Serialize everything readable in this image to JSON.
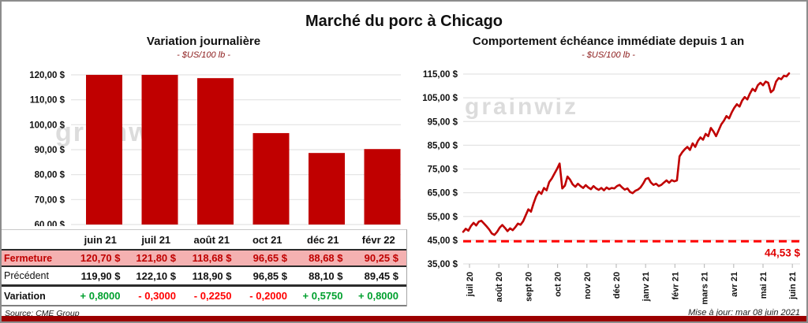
{
  "page": {
    "title": "Marché du porc à Chicago",
    "source": "Source: CME Group",
    "updated": "Mise à jour: mar 08 juin 2021",
    "watermark": "grainwiz"
  },
  "colors": {
    "bar": "#c00000",
    "line": "#c00000",
    "reference_dash": "#ff0000",
    "reference_label": "#e00000",
    "close_row_bg": "#f4b1b1",
    "close_row_text": "#c00000",
    "positive": "#00a02e",
    "negative": "#ff0000",
    "gridline": "#e3e3e3",
    "axis_text": "#111111",
    "watermark": "#dcdcdc",
    "footer_strip": "#9c0000"
  },
  "table": {
    "col_headers": [
      "juin 21",
      "juil 21",
      "août 21",
      "oct 21",
      "déc 21",
      "févr 22"
    ],
    "rows": [
      {
        "label": "Fermeture",
        "style": "close",
        "values": [
          "120,70 $",
          "121,80 $",
          "118,68 $",
          "96,65 $",
          "88,68 $",
          "90,25 $"
        ]
      },
      {
        "label": "Précédent",
        "style": "prev",
        "values": [
          "119,90 $",
          "122,10 $",
          "118,90 $",
          "96,85 $",
          "88,10 $",
          "89,45 $"
        ]
      },
      {
        "label": "Variation",
        "style": "var",
        "values": [
          "+ 0,8000",
          "- 0,3000",
          "- 0,2250",
          "- 0,2000",
          "+ 0,5750",
          "+ 0,8000"
        ]
      }
    ]
  },
  "chart_data": [
    {
      "type": "bar",
      "title": "Variation  journalière",
      "subtitle": "- $US/100 lb -",
      "categories": [
        "juin 21",
        "juil 21",
        "août 21",
        "oct 21",
        "déc 21",
        "févr 22"
      ],
      "values": [
        120.7,
        121.8,
        118.68,
        96.65,
        88.68,
        90.25
      ],
      "ylim": [
        60,
        120
      ],
      "ytick_labels": [
        "120,00 $",
        "110,00 $",
        "100,00 $",
        "90,00 $",
        "80,00 $",
        "70,00 $",
        "60,00 $"
      ],
      "ytick_values": [
        120,
        110,
        100,
        90,
        80,
        70,
        60
      ],
      "grid": true,
      "note": "bars exceeding 120 are clipped at axis max"
    },
    {
      "type": "line",
      "title": "Comportement  échéance immédiate depuis 1 an",
      "subtitle": "- $US/100 lb -",
      "x_tick_labels": [
        "juil 20",
        "août 20",
        "sept 20",
        "oct 20",
        "nov 20",
        "déc 20",
        "janv 21",
        "févr 21",
        "mars 21",
        "avr 21",
        "mai 21",
        "juin 21"
      ],
      "ylim": [
        35,
        115
      ],
      "ytick_labels": [
        "115,00 $",
        "105,00 $",
        "95,00 $",
        "85,00 $",
        "75,00 $",
        "65,00 $",
        "55,00 $",
        "45,00 $",
        "35,00 $"
      ],
      "ytick_values": [
        115,
        105,
        95,
        85,
        75,
        65,
        55,
        45,
        35
      ],
      "grid": true,
      "reference_line": {
        "value": 44.53,
        "label": "44,53 $",
        "style": "dashed"
      },
      "values": [
        48.5,
        49.8,
        49.0,
        51.0,
        52.3,
        51.2,
        52.8,
        53.2,
        52.0,
        50.8,
        49.5,
        47.8,
        47.2,
        48.5,
        50.3,
        51.4,
        50.2,
        48.8,
        50.0,
        49.2,
        50.5,
        52.0,
        51.5,
        53.0,
        55.5,
        58.0,
        57.0,
        60.5,
        63.5,
        65.5,
        64.5,
        67.0,
        66.0,
        69.5,
        71.0,
        73.0,
        75.0,
        77.3,
        66.8,
        68.0,
        71.8,
        70.5,
        68.5,
        67.5,
        68.8,
        67.8,
        67.0,
        68.2,
        67.2,
        66.5,
        67.8,
        66.8,
        66.2,
        67.0,
        66.0,
        67.2,
        66.5,
        67.0,
        66.8,
        67.8,
        68.3,
        67.2,
        66.3,
        66.8,
        65.3,
        64.8,
        65.8,
        66.3,
        67.2,
        68.8,
        70.8,
        71.2,
        69.3,
        68.3,
        68.8,
        67.8,
        68.3,
        69.3,
        70.2,
        69.2,
        70.3,
        69.8,
        70.2,
        80.3,
        82.0,
        83.3,
        84.3,
        83.0,
        85.8,
        84.3,
        86.8,
        88.3,
        87.3,
        89.8,
        88.8,
        92.3,
        90.8,
        88.8,
        91.3,
        93.8,
        95.3,
        97.3,
        96.3,
        98.8,
        100.8,
        102.3,
        101.3,
        103.8,
        105.3,
        104.3,
        106.8,
        108.8,
        107.8,
        110.3,
        111.3,
        110.3,
        111.8,
        111.3,
        107.3,
        108.3,
        111.8,
        113.3,
        112.8,
        114.3,
        114.0,
        115.3
      ]
    }
  ]
}
